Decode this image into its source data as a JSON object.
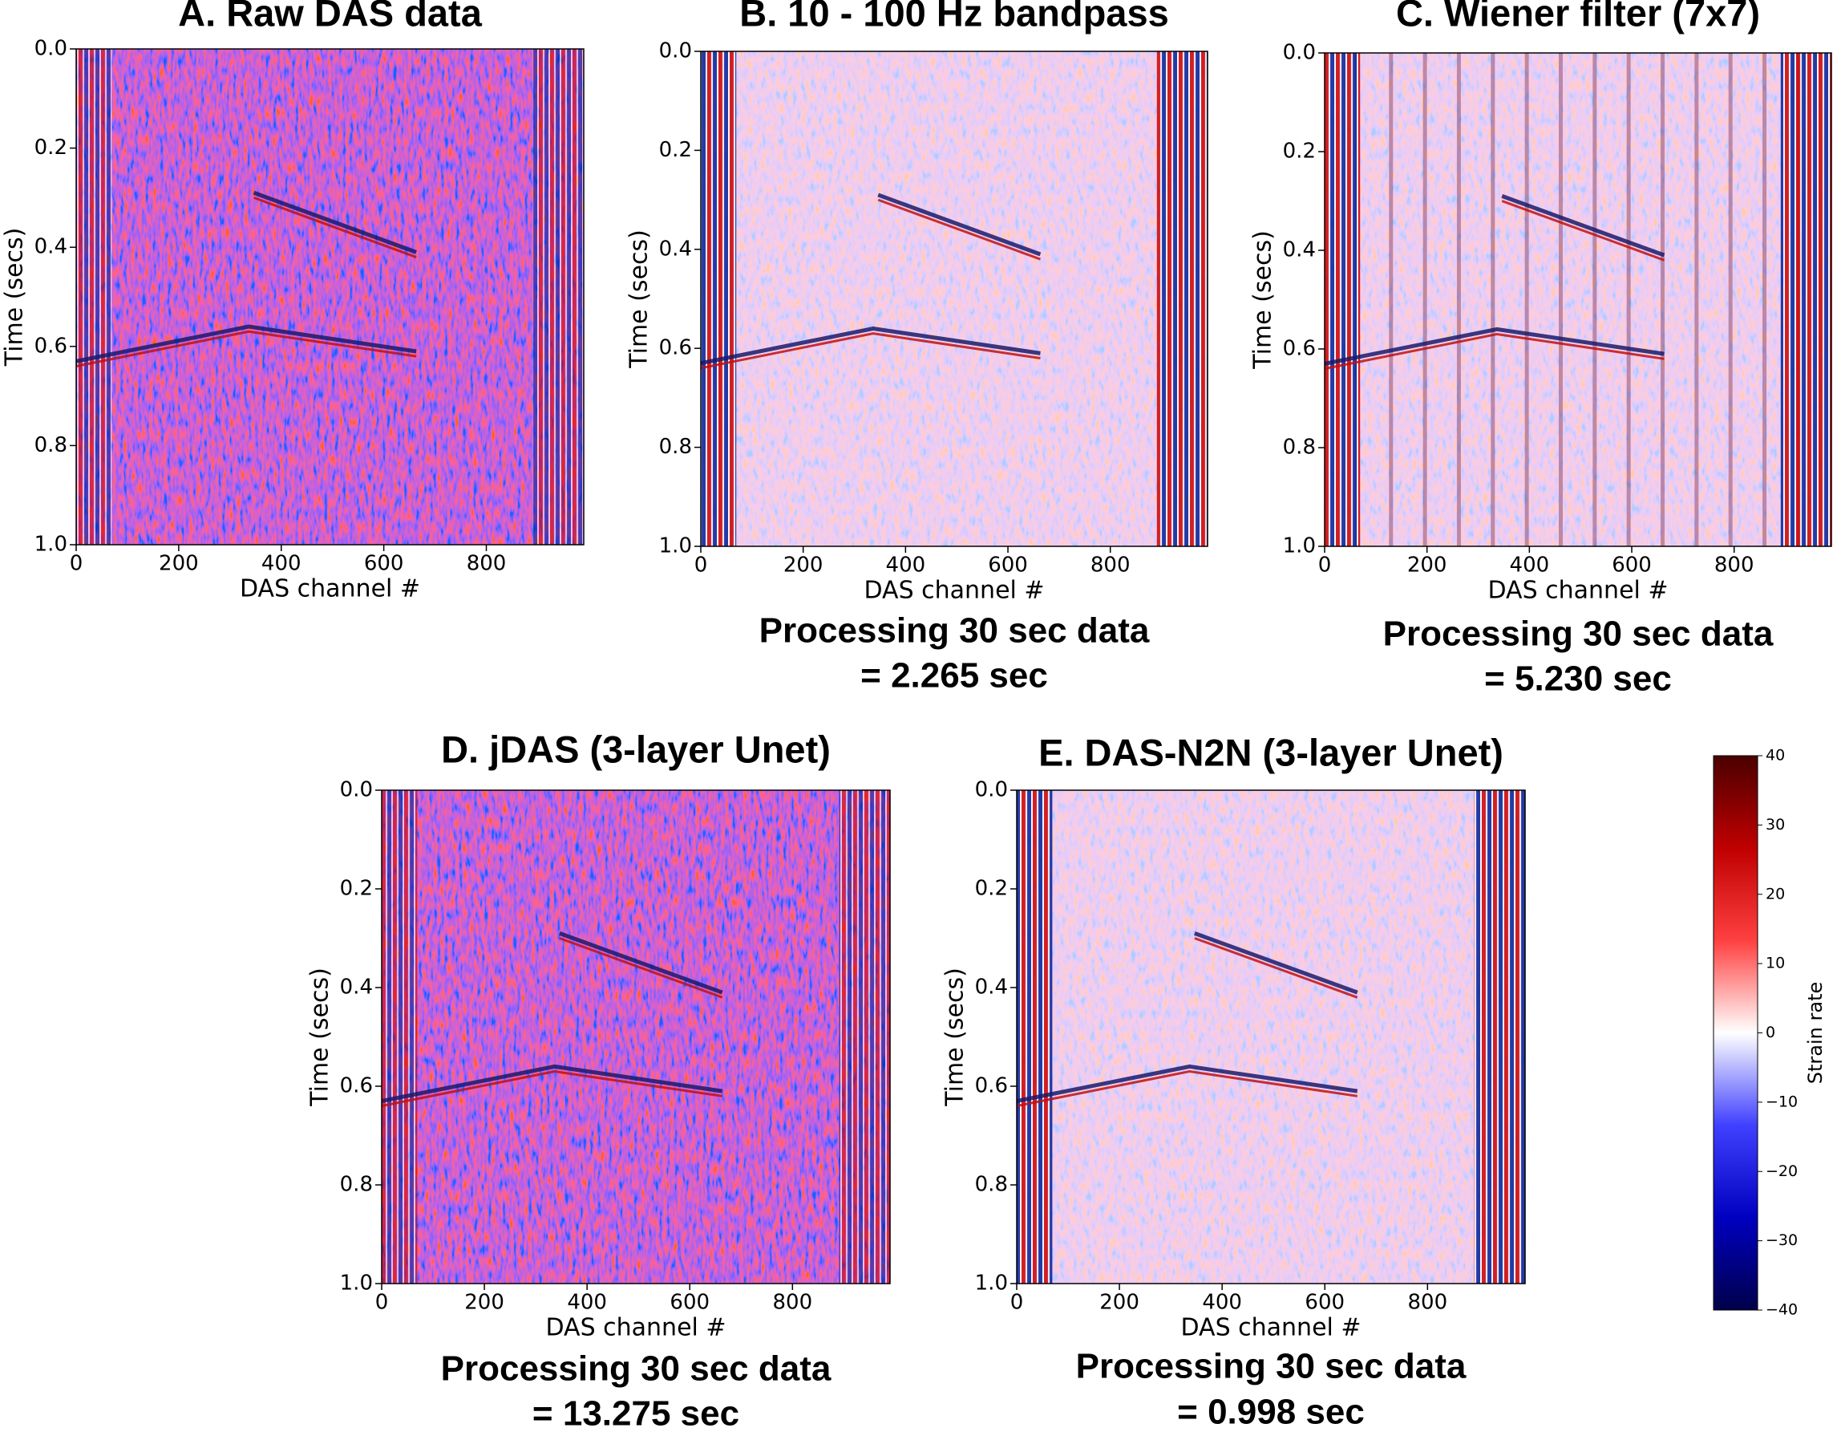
{
  "chart_data": [
    {
      "type": "heatmap",
      "title": "A. Raw DAS data",
      "xlabel": "DAS channel #",
      "ylabel": "Time (secs)",
      "xlim": [
        0,
        990
      ],
      "xticks": [
        0,
        200,
        400,
        600,
        800
      ],
      "ylim": [
        1,
        0
      ],
      "yticks": [
        {
          "value": 0,
          "label": "0.0"
        },
        0.2,
        0.4,
        0.6,
        0.8,
        {
          "value": 1,
          "label": "1.0"
        }
      ]
    },
    {
      "type": "heatmap",
      "title": "B. 10 - 100 Hz bandpass",
      "xlabel": "DAS channel #",
      "ylabel": "Time (secs)",
      "xlim": [
        0,
        990
      ],
      "xticks": [
        0,
        200,
        400,
        600,
        800
      ],
      "ylim": [
        1,
        0
      ],
      "yticks": [
        {
          "value": 0,
          "label": "0.0"
        },
        0.2,
        0.4,
        0.6,
        0.8,
        {
          "value": 1,
          "label": "1.0"
        }
      ],
      "caption": [
        "Processing 30 sec data",
        "= 2.265 sec"
      ]
    },
    {
      "type": "heatmap",
      "title": "C. Wiener filter (7x7)",
      "xlabel": "DAS channel #",
      "ylabel": "Time (secs)",
      "xlim": [
        0,
        990
      ],
      "xticks": [
        0,
        200,
        400,
        600,
        800
      ],
      "ylim": [
        1,
        0
      ],
      "yticks": [
        {
          "value": 0,
          "label": "0.0"
        },
        0.2,
        0.4,
        0.6,
        0.8,
        {
          "value": 1,
          "label": "1.0"
        }
      ],
      "caption": [
        "Processing 30 sec data",
        "= 5.230 sec"
      ]
    },
    {
      "type": "heatmap",
      "title": "D. jDAS (3-layer Unet)",
      "xlabel": "DAS channel #",
      "ylabel": "Time (secs)",
      "xlim": [
        0,
        990
      ],
      "xticks": [
        0,
        200,
        400,
        600,
        800
      ],
      "ylim": [
        1,
        0
      ],
      "yticks": [
        {
          "value": 0,
          "label": "0.0"
        },
        0.2,
        0.4,
        0.6,
        0.8,
        {
          "value": 1,
          "label": "1.0"
        }
      ],
      "caption": [
        "Processing 30 sec data",
        "= 13.275 sec"
      ]
    },
    {
      "type": "heatmap",
      "title": "E. DAS-N2N (3-layer Unet)",
      "xlabel": "DAS channel #",
      "ylabel": "Time (secs)",
      "xlim": [
        0,
        990
      ],
      "xticks": [
        0,
        200,
        400,
        600,
        800
      ],
      "ylim": [
        1,
        0
      ],
      "yticks": [
        {
          "value": 0,
          "label": "0.0"
        },
        0.2,
        0.4,
        0.6,
        0.8,
        {
          "value": 1,
          "label": "1.0"
        }
      ],
      "caption": [
        "Processing 30 sec data",
        "= 0.998 sec"
      ]
    },
    {
      "type": "colorbar",
      "label": "Strain rate",
      "colormap": "seismic",
      "ylim": [
        -40,
        40
      ],
      "yticks": [
        40,
        30,
        20,
        10,
        0,
        {
          "value": -10,
          "label": "−10"
        },
        {
          "value": -20,
          "label": "−20"
        },
        {
          "value": -30,
          "label": "−30"
        },
        {
          "value": -40,
          "label": "−40"
        }
      ]
    }
  ]
}
